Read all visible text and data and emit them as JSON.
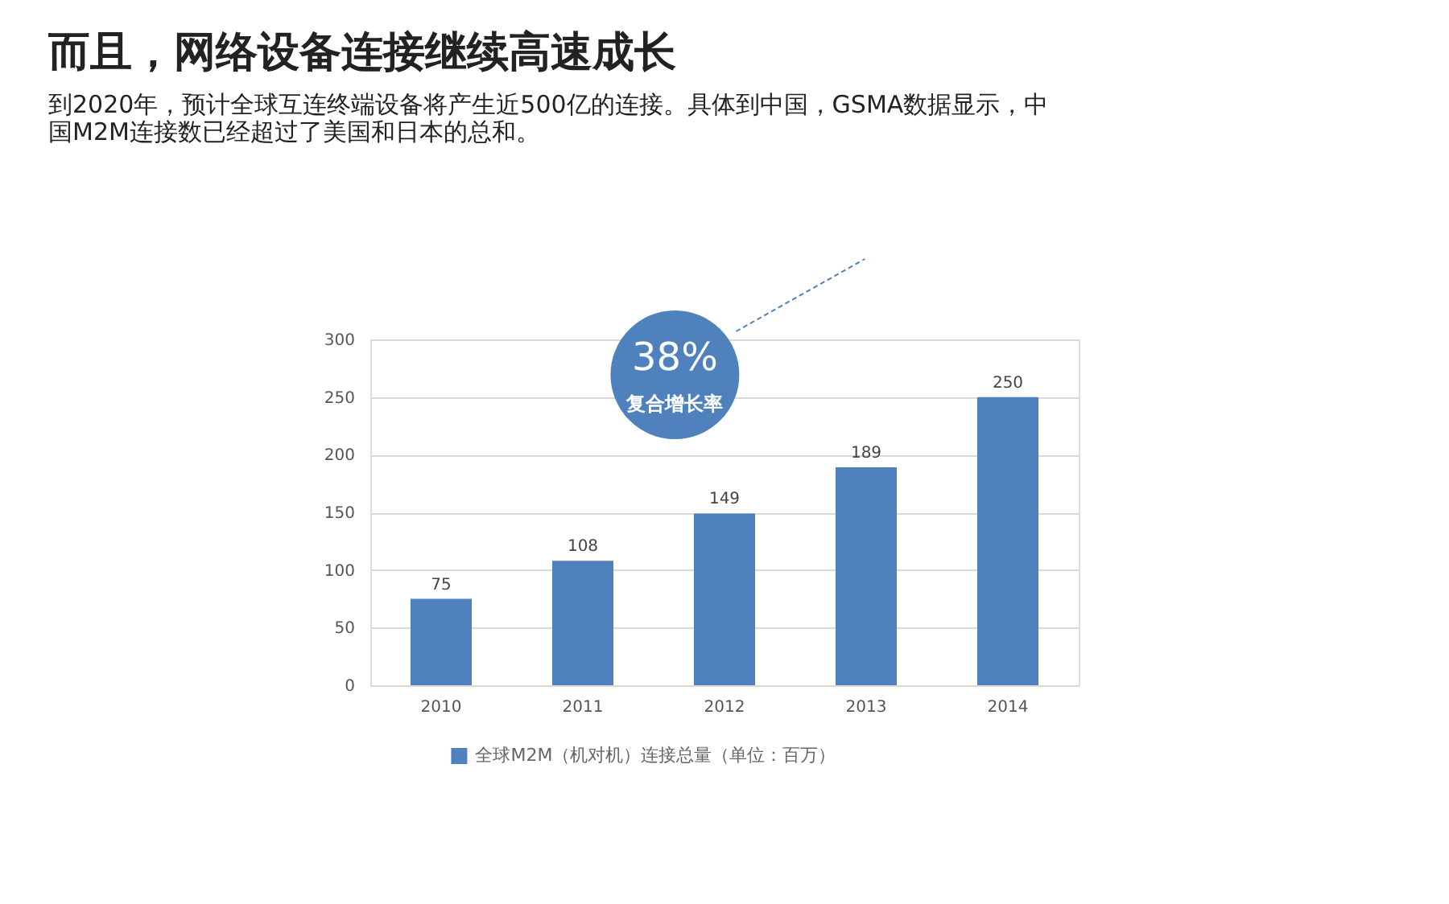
{
  "chart_data": {
    "type": "bar",
    "title": "而且，网络设备连接继续高速成长",
    "subtitle": "到2020年，预计全球互连终端设备将产生近500亿的连接。具体到中国，GSMA数据显示，中国M2M连接数已经超过了美国和日本的总和。",
    "categories": [
      "2010",
      "2011",
      "2012",
      "2013",
      "2014"
    ],
    "series": [
      {
        "name": "全球M2M（机对机）连接总量（单位：百万）",
        "color": "#4f81bd",
        "values": [
          75,
          108,
          149,
          189,
          250
        ]
      }
    ],
    "ylim": [
      0,
      300
    ],
    "yticks": [
      0,
      50,
      100,
      150,
      200,
      250,
      300
    ],
    "grid": "y",
    "data_labels": true,
    "legend": "bottom",
    "annotations": [
      "38%",
      "复合增长率"
    ]
  }
}
